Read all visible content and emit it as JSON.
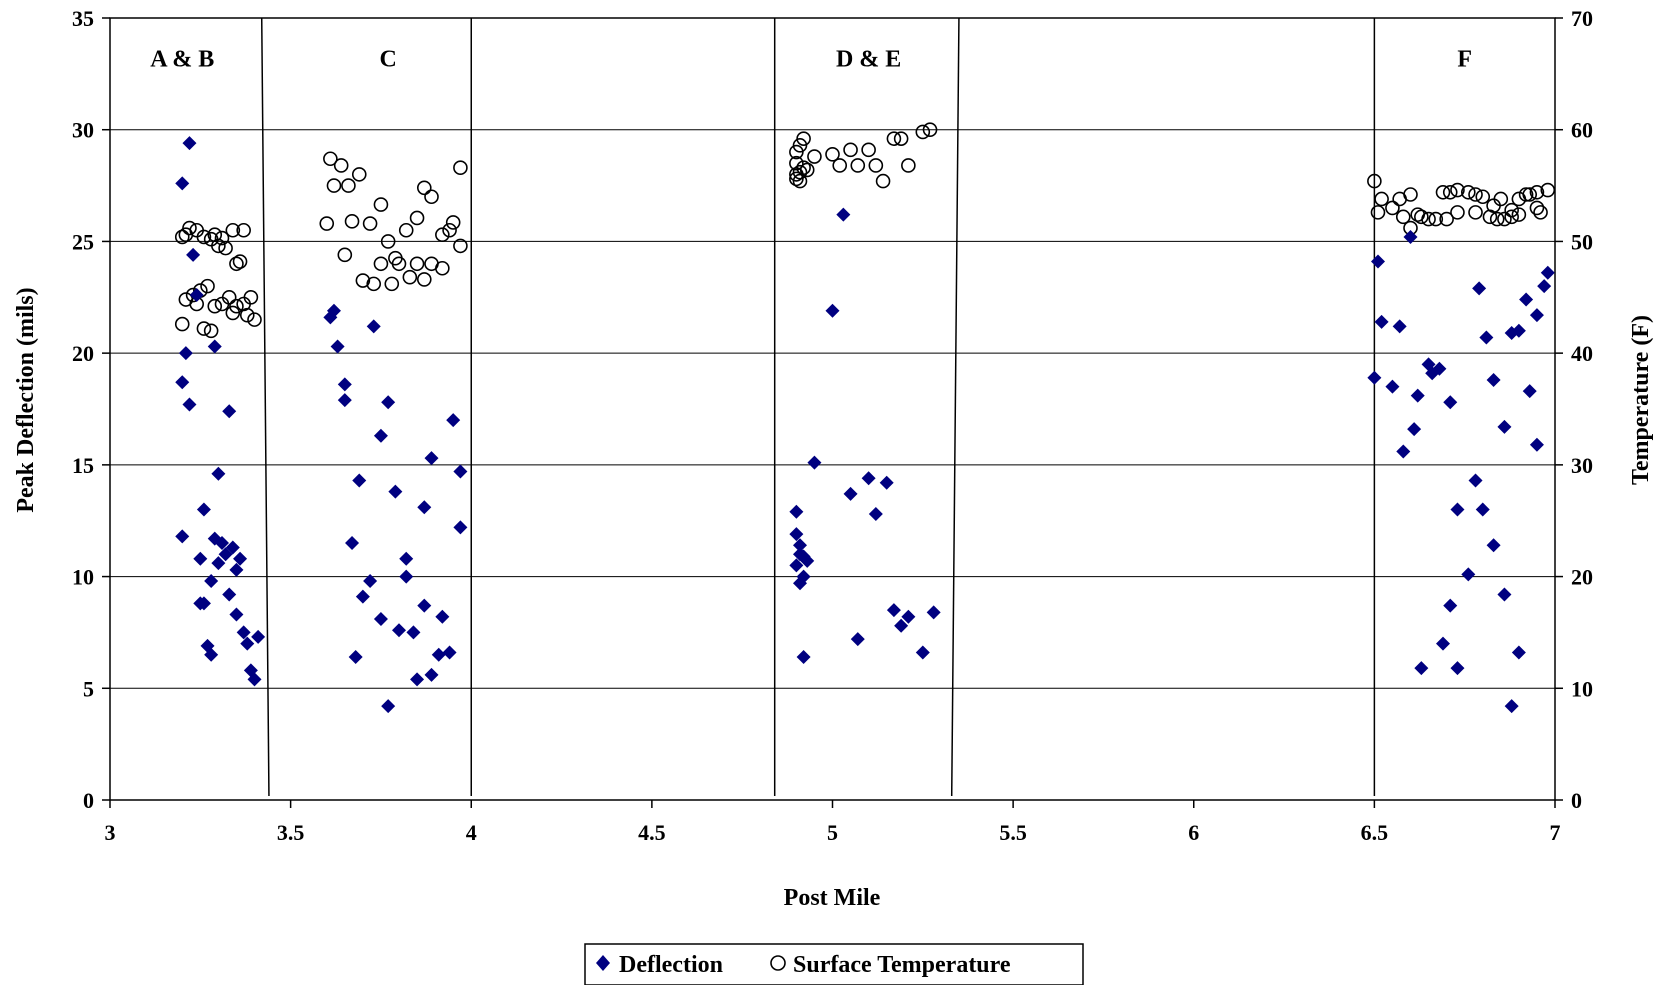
{
  "chart_data": {
    "type": "scatter",
    "xlabel": "Post Mile",
    "ylabel": "Peak Deflection (mils)",
    "y2label": "Temperature (F)",
    "xlim": [
      3,
      7
    ],
    "ylim": [
      0,
      35
    ],
    "y2lim": [
      0,
      70
    ],
    "xticks": [
      "3",
      "3.5",
      "4",
      "4.5",
      "5",
      "5.5",
      "6",
      "6.5",
      "7"
    ],
    "yticks": [
      "0",
      "5",
      "10",
      "15",
      "20",
      "25",
      "30",
      "35"
    ],
    "y2ticks": [
      "0",
      "10",
      "20",
      "30",
      "40",
      "50",
      "60",
      "70"
    ],
    "grid": "horizontal",
    "legend_position": "bottom",
    "zones": [
      {
        "label": "A & B",
        "x": 3.2
      },
      {
        "label": "C",
        "x": 3.77
      },
      {
        "label": "D & E",
        "x": 5.1
      },
      {
        "label": "F",
        "x": 6.75
      }
    ],
    "dividers": [
      {
        "x_top": 3.42,
        "x_bottom": 3.44
      },
      {
        "x_top": 4.0,
        "x_bottom": 4.0
      },
      {
        "x_top": 4.84,
        "x_bottom": 4.84
      },
      {
        "x_top": 5.35,
        "x_bottom": 5.33
      },
      {
        "x_top": 6.5,
        "x_bottom": 6.5
      }
    ],
    "series": [
      {
        "name": "Deflection",
        "axis": "left",
        "marker": "diamond",
        "color": "#000080",
        "points": [
          [
            3.2,
            27.6
          ],
          [
            3.22,
            29.4
          ],
          [
            3.23,
            24.4
          ],
          [
            3.21,
            20.0
          ],
          [
            3.2,
            18.7
          ],
          [
            3.22,
            17.7
          ],
          [
            3.24,
            22.6
          ],
          [
            3.29,
            20.3
          ],
          [
            3.33,
            17.4
          ],
          [
            3.3,
            14.6
          ],
          [
            3.2,
            11.8
          ],
          [
            3.26,
            13.0
          ],
          [
            3.25,
            10.8
          ],
          [
            3.28,
            9.8
          ],
          [
            3.29,
            11.7
          ],
          [
            3.31,
            11.5
          ],
          [
            3.3,
            10.6
          ],
          [
            3.32,
            11.0
          ],
          [
            3.34,
            11.3
          ],
          [
            3.36,
            10.8
          ],
          [
            3.35,
            10.3
          ],
          [
            3.33,
            9.2
          ],
          [
            3.25,
            8.8
          ],
          [
            3.26,
            8.8
          ],
          [
            3.35,
            8.3
          ],
          [
            3.37,
            7.5
          ],
          [
            3.38,
            7.0
          ],
          [
            3.41,
            7.3
          ],
          [
            3.27,
            6.9
          ],
          [
            3.28,
            6.5
          ],
          [
            3.39,
            5.8
          ],
          [
            3.4,
            5.4
          ],
          [
            3.61,
            21.6
          ],
          [
            3.62,
            21.9
          ],
          [
            3.63,
            20.3
          ],
          [
            3.73,
            21.2
          ],
          [
            3.65,
            18.6
          ],
          [
            3.65,
            17.9
          ],
          [
            3.77,
            17.8
          ],
          [
            3.75,
            16.3
          ],
          [
            3.95,
            17.0
          ],
          [
            3.97,
            14.7
          ],
          [
            3.89,
            15.3
          ],
          [
            3.69,
            14.3
          ],
          [
            3.79,
            13.8
          ],
          [
            3.87,
            13.1
          ],
          [
            3.97,
            12.2
          ],
          [
            3.67,
            11.5
          ],
          [
            3.82,
            10.8
          ],
          [
            3.72,
            9.8
          ],
          [
            3.82,
            10.0
          ],
          [
            3.7,
            9.1
          ],
          [
            3.87,
            8.7
          ],
          [
            3.75,
            8.1
          ],
          [
            3.92,
            8.2
          ],
          [
            3.8,
            7.6
          ],
          [
            3.84,
            7.5
          ],
          [
            3.68,
            6.4
          ],
          [
            3.91,
            6.5
          ],
          [
            3.94,
            6.6
          ],
          [
            3.89,
            5.6
          ],
          [
            3.85,
            5.4
          ],
          [
            3.77,
            4.2
          ],
          [
            5.03,
            26.2
          ],
          [
            5.0,
            21.9
          ],
          [
            4.95,
            15.1
          ],
          [
            5.1,
            14.4
          ],
          [
            5.15,
            14.2
          ],
          [
            5.05,
            13.7
          ],
          [
            5.12,
            12.8
          ],
          [
            4.9,
            12.9
          ],
          [
            4.9,
            11.9
          ],
          [
            4.91,
            11.4
          ],
          [
            4.91,
            11.0
          ],
          [
            4.92,
            10.9
          ],
          [
            4.9,
            10.5
          ],
          [
            4.93,
            10.7
          ],
          [
            4.92,
            10.0
          ],
          [
            4.91,
            9.7
          ],
          [
            5.17,
            8.5
          ],
          [
            5.21,
            8.2
          ],
          [
            5.28,
            8.4
          ],
          [
            5.19,
            7.8
          ],
          [
            5.07,
            7.2
          ],
          [
            5.25,
            6.6
          ],
          [
            4.92,
            6.4
          ],
          [
            6.51,
            24.1
          ],
          [
            6.6,
            25.2
          ],
          [
            6.52,
            21.4
          ],
          [
            6.57,
            21.2
          ],
          [
            6.79,
            22.9
          ],
          [
            6.81,
            20.7
          ],
          [
            6.98,
            23.6
          ],
          [
            6.97,
            23.0
          ],
          [
            6.92,
            22.4
          ],
          [
            6.95,
            21.7
          ],
          [
            6.9,
            21.0
          ],
          [
            6.88,
            20.9
          ],
          [
            6.5,
            18.9
          ],
          [
            6.55,
            18.5
          ],
          [
            6.65,
            19.5
          ],
          [
            6.68,
            19.3
          ],
          [
            6.66,
            19.1
          ],
          [
            6.62,
            18.1
          ],
          [
            6.71,
            17.8
          ],
          [
            6.83,
            18.8
          ],
          [
            6.93,
            18.3
          ],
          [
            6.61,
            16.6
          ],
          [
            6.58,
            15.6
          ],
          [
            6.86,
            16.7
          ],
          [
            6.95,
            15.9
          ],
          [
            6.78,
            14.3
          ],
          [
            6.8,
            13.0
          ],
          [
            6.73,
            13.0
          ],
          [
            6.83,
            11.4
          ],
          [
            6.76,
            10.1
          ],
          [
            6.71,
            8.7
          ],
          [
            6.86,
            9.2
          ],
          [
            6.69,
            7.0
          ],
          [
            6.9,
            6.6
          ],
          [
            6.63,
            5.9
          ],
          [
            6.73,
            5.9
          ],
          [
            6.88,
            4.2
          ]
        ]
      },
      {
        "name": "Surface Temperature",
        "axis": "right",
        "marker": "circle",
        "color": "#000000",
        "points": [
          [
            3.2,
            50.4
          ],
          [
            3.21,
            50.6
          ],
          [
            3.22,
            51.2
          ],
          [
            3.24,
            51.0
          ],
          [
            3.26,
            50.4
          ],
          [
            3.28,
            50.2
          ],
          [
            3.3,
            49.6
          ],
          [
            3.32,
            49.4
          ],
          [
            3.29,
            50.6
          ],
          [
            3.31,
            50.3
          ],
          [
            3.34,
            51.0
          ],
          [
            3.37,
            51.0
          ],
          [
            3.35,
            48.0
          ],
          [
            3.36,
            48.2
          ],
          [
            3.2,
            42.6
          ],
          [
            3.21,
            44.8
          ],
          [
            3.23,
            45.2
          ],
          [
            3.25,
            45.6
          ],
          [
            3.27,
            46.0
          ],
          [
            3.24,
            44.4
          ],
          [
            3.29,
            44.2
          ],
          [
            3.31,
            44.4
          ],
          [
            3.33,
            45.0
          ],
          [
            3.35,
            44.2
          ],
          [
            3.37,
            44.4
          ],
          [
            3.39,
            45.0
          ],
          [
            3.34,
            43.6
          ],
          [
            3.38,
            43.4
          ],
          [
            3.4,
            43.0
          ],
          [
            3.26,
            42.2
          ],
          [
            3.28,
            42.0
          ],
          [
            3.61,
            57.4
          ],
          [
            3.64,
            56.8
          ],
          [
            3.62,
            55.0
          ],
          [
            3.66,
            55.0
          ],
          [
            3.69,
            56.0
          ],
          [
            3.75,
            53.3
          ],
          [
            3.6,
            51.6
          ],
          [
            3.67,
            51.8
          ],
          [
            3.72,
            51.6
          ],
          [
            3.77,
            50.0
          ],
          [
            3.82,
            51.0
          ],
          [
            3.85,
            52.1
          ],
          [
            3.87,
            54.8
          ],
          [
            3.89,
            54.0
          ],
          [
            3.97,
            56.6
          ],
          [
            3.95,
            51.7
          ],
          [
            3.92,
            50.6
          ],
          [
            3.94,
            51.0
          ],
          [
            3.97,
            49.6
          ],
          [
            3.65,
            48.8
          ],
          [
            3.75,
            48.0
          ],
          [
            3.79,
            48.5
          ],
          [
            3.8,
            48.0
          ],
          [
            3.83,
            46.8
          ],
          [
            3.85,
            48.0
          ],
          [
            3.89,
            48.0
          ],
          [
            3.92,
            47.6
          ],
          [
            3.7,
            46.5
          ],
          [
            3.73,
            46.2
          ],
          [
            3.78,
            46.2
          ],
          [
            3.87,
            46.6
          ],
          [
            4.9,
            58.0
          ],
          [
            4.91,
            58.6
          ],
          [
            4.92,
            59.2
          ],
          [
            4.9,
            57.0
          ],
          [
            4.91,
            56.2
          ],
          [
            4.9,
            55.6
          ],
          [
            4.92,
            56.6
          ],
          [
            4.9,
            56.0
          ],
          [
            4.93,
            56.4
          ],
          [
            4.91,
            55.4
          ],
          [
            4.95,
            57.6
          ],
          [
            5.0,
            57.8
          ],
          [
            5.02,
            56.8
          ],
          [
            5.05,
            58.2
          ],
          [
            5.07,
            56.8
          ],
          [
            5.1,
            58.2
          ],
          [
            5.12,
            56.8
          ],
          [
            5.14,
            55.4
          ],
          [
            5.17,
            59.2
          ],
          [
            5.19,
            59.2
          ],
          [
            5.21,
            56.8
          ],
          [
            5.25,
            59.8
          ],
          [
            5.27,
            60.0
          ],
          [
            6.5,
            55.4
          ],
          [
            6.51,
            52.6
          ],
          [
            6.52,
            53.8
          ],
          [
            6.55,
            53.0
          ],
          [
            6.57,
            53.8
          ],
          [
            6.58,
            52.2
          ],
          [
            6.6,
            54.2
          ],
          [
            6.6,
            51.2
          ],
          [
            6.62,
            52.4
          ],
          [
            6.63,
            52.2
          ],
          [
            6.65,
            52.0
          ],
          [
            6.67,
            52.0
          ],
          [
            6.69,
            54.4
          ],
          [
            6.7,
            52.0
          ],
          [
            6.71,
            54.4
          ],
          [
            6.73,
            54.6
          ],
          [
            6.73,
            52.6
          ],
          [
            6.76,
            54.4
          ],
          [
            6.78,
            54.2
          ],
          [
            6.78,
            52.6
          ],
          [
            6.8,
            54.0
          ],
          [
            6.82,
            52.2
          ],
          [
            6.83,
            53.2
          ],
          [
            6.84,
            52.0
          ],
          [
            6.85,
            53.8
          ],
          [
            6.86,
            52.0
          ],
          [
            6.88,
            52.8
          ],
          [
            6.88,
            52.2
          ],
          [
            6.9,
            53.8
          ],
          [
            6.9,
            52.4
          ],
          [
            6.92,
            54.2
          ],
          [
            6.93,
            54.2
          ],
          [
            6.95,
            54.4
          ],
          [
            6.95,
            53.0
          ],
          [
            6.96,
            52.6
          ],
          [
            6.98,
            54.6
          ]
        ]
      }
    ]
  }
}
